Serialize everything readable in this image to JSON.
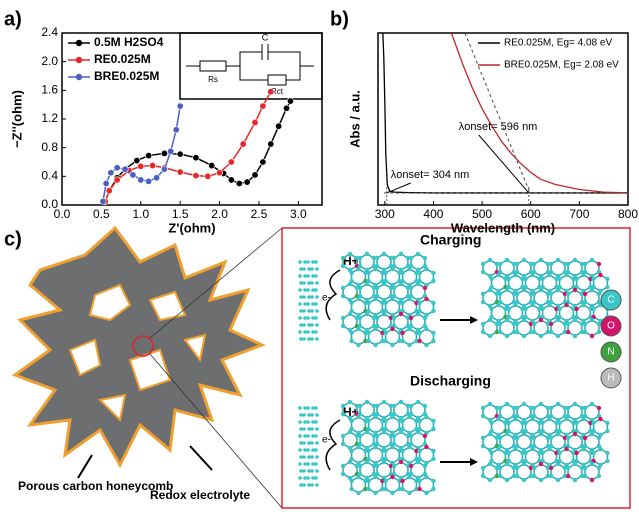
{
  "chart_data": [
    {
      "type": "line",
      "panel_label": "a)",
      "x_label": "Z'(ohm)",
      "y_label": "−Z''(ohm)",
      "xlim": [
        0,
        3.3
      ],
      "ylim": [
        0,
        2.4
      ],
      "xticks": [
        {
          "value": 0,
          "label": "0.0"
        },
        0.5,
        {
          "value": 1,
          "label": "1.0"
        },
        1.5,
        {
          "value": 2,
          "label": "2.0"
        },
        2.5,
        {
          "value": 3,
          "label": "3.0"
        }
      ],
      "yticks": [
        {
          "value": 0,
          "label": "0.0"
        },
        0.4,
        0.8,
        1.2,
        1.6,
        {
          "value": 2,
          "label": "2.0"
        },
        2.4
      ],
      "legend": "upper left",
      "inset": {
        "capacitor": "C",
        "r_solution": "Rs",
        "r_ct": "Rct"
      },
      "series": [
        {
          "name": "0.5M H2SO4",
          "color": "#000000",
          "x": [
            0.55,
            0.6,
            0.7,
            0.8,
            0.95,
            1.1,
            1.3,
            1.5,
            1.7,
            1.9,
            2.05,
            2.15,
            2.25,
            2.35,
            2.45,
            2.55,
            2.65,
            2.75,
            2.85,
            2.9
          ],
          "values": [
            0.05,
            0.2,
            0.38,
            0.5,
            0.62,
            0.69,
            0.72,
            0.71,
            0.66,
            0.55,
            0.44,
            0.35,
            0.3,
            0.32,
            0.42,
            0.6,
            0.85,
            1.1,
            1.35,
            1.45
          ]
        },
        {
          "name": "RE0.025M",
          "color": "#e8262a",
          "x": [
            0.55,
            0.6,
            0.7,
            0.85,
            1.0,
            1.15,
            1.3,
            1.5,
            1.7,
            1.85,
            2.0,
            2.15,
            2.3,
            2.45,
            2.55,
            2.65
          ],
          "values": [
            0.05,
            0.2,
            0.35,
            0.48,
            0.54,
            0.55,
            0.52,
            0.46,
            0.41,
            0.4,
            0.45,
            0.6,
            0.85,
            1.15,
            1.38,
            1.58
          ]
        },
        {
          "name": "BRE0.025M",
          "color": "#4a5fc1",
          "x": [
            0.52,
            0.56,
            0.62,
            0.7,
            0.8,
            0.9,
            1.0,
            1.1,
            1.2,
            1.3,
            1.38,
            1.45,
            1.5
          ],
          "values": [
            0.05,
            0.3,
            0.45,
            0.52,
            0.5,
            0.42,
            0.35,
            0.33,
            0.38,
            0.5,
            0.75,
            1.05,
            1.38
          ]
        }
      ]
    },
    {
      "type": "line",
      "panel_label": "b)",
      "x_label": "Wavelength (nm)",
      "y_label": "Abs / a.u.",
      "xlim": [
        286,
        800
      ],
      "ylim": [
        0,
        1
      ],
      "xticks": [
        300,
        400,
        500,
        600,
        700,
        800
      ],
      "legend": "upper right",
      "series": [
        {
          "name": "RE0.025M, Eg= 4.08 eV",
          "color": "#000000",
          "x": [
            296,
            298,
            300,
            302,
            305,
            310,
            320,
            350,
            400,
            500,
            600,
            700,
            800
          ],
          "values": [
            1.0,
            0.85,
            0.6,
            0.3,
            0.12,
            0.08,
            0.075,
            0.072,
            0.07,
            0.07,
            0.07,
            0.07,
            0.07
          ]
        },
        {
          "name": "BRE0.025M, Eg= 2.08 eV",
          "color": "#c0272d",
          "x": [
            437,
            460,
            480,
            500,
            520,
            540,
            560,
            580,
            600,
            620,
            650,
            700,
            750,
            800
          ],
          "values": [
            1.0,
            0.82,
            0.68,
            0.56,
            0.46,
            0.37,
            0.3,
            0.24,
            0.19,
            0.15,
            0.12,
            0.09,
            0.075,
            0.07
          ]
        }
      ],
      "annotations": [
        {
          "text": "λonset= 304 nm",
          "x": 304
        },
        {
          "text": "λonset= 596 nm",
          "x": 596
        }
      ]
    }
  ],
  "diagram": {
    "panel_label": "c)",
    "charging": "Charging",
    "discharging": "Discharging",
    "proton": "H+",
    "electron": "e-",
    "porous_carbon": "Porous carbon honeycomb",
    "electrolyte": "Redox electrolyte",
    "atoms": [
      "C",
      "O",
      "N",
      "H"
    ]
  }
}
